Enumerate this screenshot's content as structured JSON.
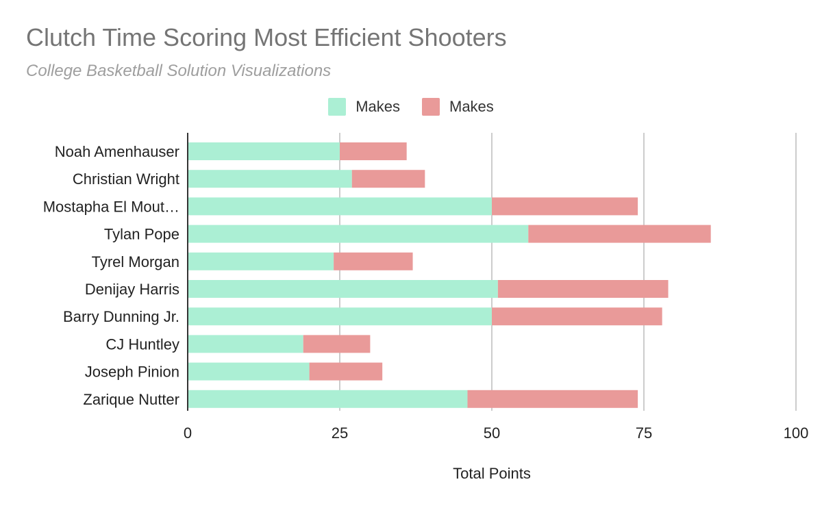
{
  "chart_data": {
    "type": "bar",
    "orientation": "horizontal",
    "stacked": true,
    "title": "Clutch Time Scoring Most Efficient Shooters",
    "subtitle": "College Basketball Solution Visualizations",
    "xlabel": "Total Points",
    "ylabel": "",
    "xlim": [
      0,
      100
    ],
    "xticks": [
      0,
      25,
      50,
      75,
      100
    ],
    "grid": true,
    "legend_position": "top",
    "categories": [
      "Noah Amenhauser",
      "Christian Wright",
      "Mostapha El Mout…",
      "Tylan Pope",
      "Tyrel Morgan",
      "Denijay Harris",
      "Barry Dunning Jr.",
      "CJ Huntley",
      "Joseph Pinion",
      "Zarique Nutter"
    ],
    "series": [
      {
        "name": "Makes",
        "color": "#abefd4",
        "values": [
          25,
          27,
          50,
          56,
          24,
          51,
          50,
          19,
          20,
          46
        ]
      },
      {
        "name": "Makes",
        "color": "#e99a99",
        "values": [
          11,
          12,
          24,
          30,
          13,
          28,
          28,
          11,
          12,
          28
        ]
      }
    ]
  }
}
